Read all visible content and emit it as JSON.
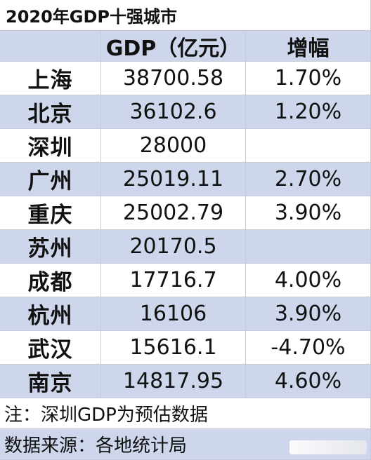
{
  "title": "2020年GDP十强城市",
  "headers": {
    "city": "",
    "gdp": "GDP（亿元）",
    "growth": "增幅"
  },
  "rows": [
    {
      "city": "上海",
      "gdp": "38700.58",
      "growth": "1.70%"
    },
    {
      "city": "北京",
      "gdp": "36102.6",
      "growth": "1.20%"
    },
    {
      "city": "深圳",
      "gdp": "28000",
      "growth": ""
    },
    {
      "city": "广州",
      "gdp": "25019.11",
      "growth": "2.70%"
    },
    {
      "city": "重庆",
      "gdp": "25002.79",
      "growth": "3.90%"
    },
    {
      "city": "苏州",
      "gdp": "20170.5",
      "growth": ""
    },
    {
      "city": "成都",
      "gdp": "17716.7",
      "growth": "4.00%"
    },
    {
      "city": "杭州",
      "gdp": "16106",
      "growth": "3.90%"
    },
    {
      "city": "武汉",
      "gdp": "15616.1",
      "growth": "-4.70%"
    },
    {
      "city": "南京",
      "gdp": "14817.95",
      "growth": "4.60%"
    }
  ],
  "notes": {
    "estimate": "注：深圳GDP为预估数据",
    "source": "数据来源：各地统计局"
  },
  "colors": {
    "band": "#cdd6ea",
    "white": "#ffffff",
    "grid": "#c8ccd4"
  }
}
